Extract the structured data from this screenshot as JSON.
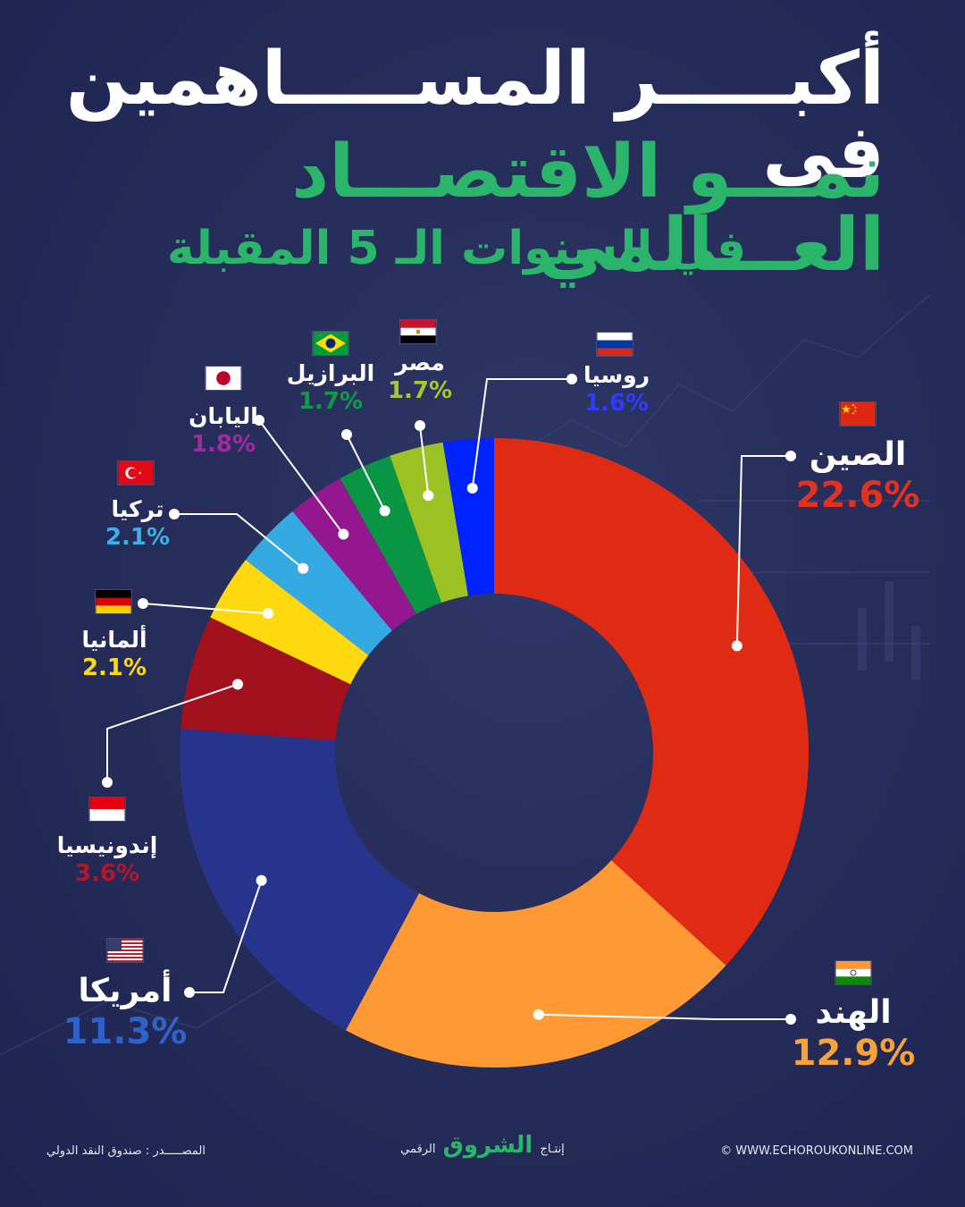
{
  "title_line1": "أكبـــــر المســـــاهمين في",
  "title_line2": "نمـــو الاقتصـــاد العـــالمي",
  "title_line3": "في السنوات الـ 5 المقبلة",
  "chart_data": {
    "type": "donut",
    "unit": "%",
    "slices": [
      {
        "name": "الصين",
        "value": 22.6,
        "label": "22.6%",
        "color": "#e02b14"
      },
      {
        "name": "الهند",
        "value": 12.9,
        "label": "12.9%",
        "color": "#ff9933"
      },
      {
        "name": "أمريكا",
        "value": 11.3,
        "label": "11.3%",
        "color": "#27348b"
      },
      {
        "name": "إندونيسيا",
        "value": 3.6,
        "label": "3.6%",
        "color": "#a1101c"
      },
      {
        "name": "ألمانيا",
        "value": 2.1,
        "label": "2.1%",
        "color": "#ffd90f"
      },
      {
        "name": "تركيا",
        "value": 2.1,
        "label": "2.1%",
        "color": "#35a9e1"
      },
      {
        "name": "اليابان",
        "value": 1.8,
        "label": "1.8%",
        "color": "#93188f"
      },
      {
        "name": "البرازيل",
        "value": 1.7,
        "label": "1.7%",
        "color": "#0a9545"
      },
      {
        "name": "مصر",
        "value": 1.7,
        "label": "1.7%",
        "color": "#9bc222"
      },
      {
        "name": "روسيا",
        "value": 1.6,
        "label": "1.6%",
        "color": "#0022ff"
      }
    ],
    "value_colors": {
      "الصين": "#e2321d",
      "الهند": "#f7a33a",
      "أمريكا": "#2f62c8",
      "إندونيسيا": "#b3162a",
      "ألمانيا": "#ffd90f",
      "تركيا": "#39b2ea",
      "اليابان": "#a22aa0",
      "البرازيل": "#0f9a48",
      "مصر": "#a6c82a",
      "روسيا": "#2f3cff"
    }
  },
  "footer": {
    "source": "المصـــــدر : صندوق النقد الدولي",
    "production_prefix": "إنتـاج",
    "brand": "الشروق",
    "production_suffix": "الرقمي",
    "website": "© WWW.ECHOROUKONLINE.COM"
  }
}
